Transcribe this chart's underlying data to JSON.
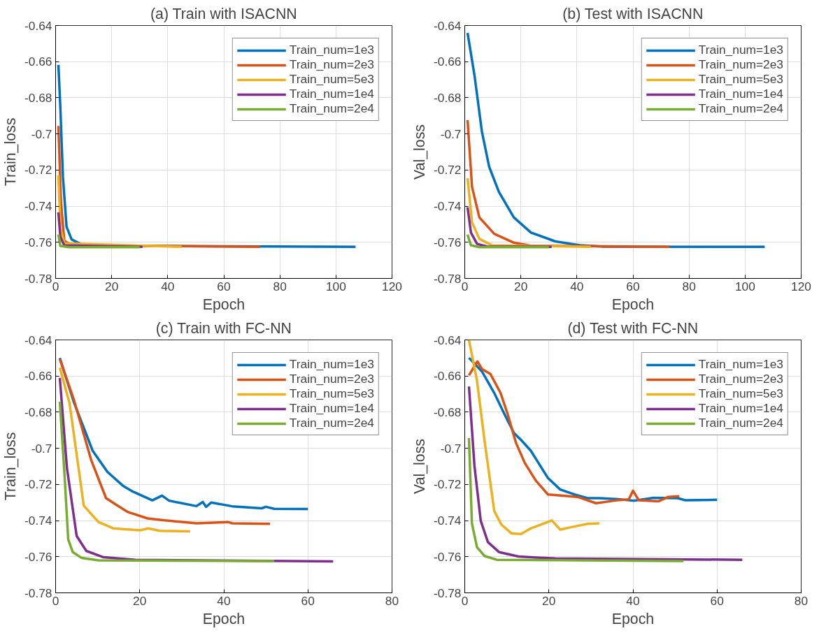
{
  "chart_data": [
    {
      "type": "line",
      "title": "(a) Train with ISACNN",
      "xlabel": "Epoch",
      "ylabel": "Train_loss",
      "xlim": [
        0,
        120
      ],
      "ylim": [
        -0.78,
        -0.64
      ],
      "xticks": [
        0,
        20,
        40,
        60,
        80,
        100,
        120
      ],
      "yticks": [
        -0.78,
        -0.76,
        -0.74,
        -0.72,
        -0.7,
        -0.68,
        -0.66,
        -0.64
      ],
      "grid": true,
      "legend": "top right",
      "line_style": "solid",
      "series": [
        {
          "name": "Train_num=1e3",
          "color": "#0072bd",
          "x": [
            1,
            1.7,
            2.6,
            3.9,
            5.7,
            9.2,
            15.3,
            107
          ],
          "values": [
            -0.6618,
            -0.6856,
            -0.7234,
            -0.7514,
            -0.7584,
            -0.7612,
            -0.7619,
            -0.7625
          ]
        },
        {
          "name": "Train_num=2e3",
          "color": "#d95319",
          "x": [
            1,
            1.9,
            3.1,
            5.7,
            73
          ],
          "values": [
            -0.6956,
            -0.7375,
            -0.7592,
            -0.7616,
            -0.7625
          ]
        },
        {
          "name": "Train_num=5e3",
          "color": "#edb120",
          "x": [
            1,
            1.7,
            3.1,
            45
          ],
          "values": [
            -0.7228,
            -0.7515,
            -0.7606,
            -0.7625
          ]
        },
        {
          "name": "Train_num=1e4",
          "color": "#7e2f8e",
          "x": [
            1,
            1.7,
            3.1,
            31
          ],
          "values": [
            -0.7434,
            -0.7571,
            -0.7617,
            -0.7625
          ]
        },
        {
          "name": "Train_num=2e4",
          "color": "#77ac30",
          "x": [
            1,
            1.7,
            4.8,
            30
          ],
          "values": [
            -0.7557,
            -0.762,
            -0.7627,
            -0.7627
          ]
        }
      ]
    },
    {
      "type": "line",
      "title": "(b) Test with ISACNN",
      "xlabel": "Epoch",
      "ylabel": "Val_loss",
      "xlim": [
        0,
        120
      ],
      "ylim": [
        -0.78,
        -0.64
      ],
      "xticks": [
        0,
        20,
        40,
        60,
        80,
        100,
        120
      ],
      "yticks": [
        -0.78,
        -0.76,
        -0.74,
        -0.72,
        -0.7,
        -0.68,
        -0.66,
        -0.64
      ],
      "grid": true,
      "legend": "top right",
      "line_style": "solid",
      "series": [
        {
          "name": "Train_num=1e3",
          "color": "#0072bd",
          "x": [
            1,
            3.5,
            6.1,
            8.7,
            12.2,
            17.5,
            23.6,
            32.3,
            41,
            49.8,
            107
          ],
          "values": [
            -0.6441,
            -0.6679,
            -0.6986,
            -0.7182,
            -0.7322,
            -0.7462,
            -0.7546,
            -0.7595,
            -0.7616,
            -0.7624,
            -0.7625
          ]
        },
        {
          "name": "Train_num=2e3",
          "color": "#d95319",
          "x": [
            1,
            2.6,
            5.2,
            10.5,
            17.5,
            23.6,
            73
          ],
          "values": [
            -0.6924,
            -0.7294,
            -0.7462,
            -0.7553,
            -0.7602,
            -0.7619,
            -0.7625
          ]
        },
        {
          "name": "Train_num=5e3",
          "color": "#edb120",
          "x": [
            1,
            2.6,
            5.2,
            9.6,
            45
          ],
          "values": [
            -0.7245,
            -0.749,
            -0.7581,
            -0.7616,
            -0.7625
          ]
        },
        {
          "name": "Train_num=1e4",
          "color": "#7e2f8e",
          "x": [
            1,
            2.2,
            4.4,
            7.9,
            31
          ],
          "values": [
            -0.7406,
            -0.7546,
            -0.7609,
            -0.7623,
            -0.7625
          ]
        },
        {
          "name": "Train_num=2e4",
          "color": "#77ac30",
          "x": [
            1,
            2.2,
            5.2,
            30
          ],
          "values": [
            -0.7557,
            -0.7616,
            -0.7627,
            -0.7627
          ]
        }
      ]
    },
    {
      "type": "line",
      "title": "(c) Train with FC-NN",
      "xlabel": "Epoch",
      "ylabel": "Train_loss",
      "xlim": [
        0,
        80
      ],
      "ylim": [
        -0.78,
        -0.64
      ],
      "xticks": [
        0,
        20,
        40,
        60,
        80
      ],
      "yticks": [
        -0.78,
        -0.76,
        -0.74,
        -0.72,
        -0.7,
        -0.68,
        -0.66,
        -0.64
      ],
      "grid": true,
      "legend": "top right",
      "line_style": "solid",
      "series": [
        {
          "name": "Train_num=1e3",
          "color": "#0072bd",
          "x": [
            1,
            4.4,
            8.8,
            12.3,
            16,
            18.4,
            23,
            25.3,
            27,
            33.5,
            35,
            35.8,
            37,
            42,
            49,
            50,
            52,
            60
          ],
          "values": [
            -0.65,
            -0.6749,
            -0.7013,
            -0.713,
            -0.7207,
            -0.724,
            -0.7288,
            -0.7262,
            -0.729,
            -0.732,
            -0.7297,
            -0.7324,
            -0.73,
            -0.7321,
            -0.7332,
            -0.7324,
            -0.7335,
            -0.7336
          ]
        },
        {
          "name": "Train_num=2e3",
          "color": "#d95319",
          "x": [
            1,
            4.4,
            8.5,
            12,
            14.3,
            17.2,
            21.9,
            26,
            33.5,
            41,
            42,
            51
          ],
          "values": [
            -0.6506,
            -0.6735,
            -0.7068,
            -0.7276,
            -0.7311,
            -0.7353,
            -0.7388,
            -0.7399,
            -0.7415,
            -0.7408,
            -0.7415,
            -0.7418
          ]
        },
        {
          "name": "Train_num=5e3",
          "color": "#edb120",
          "x": [
            1,
            3.3,
            6.7,
            10.2,
            13.7,
            20.1,
            22,
            24.8,
            32
          ],
          "values": [
            -0.6554,
            -0.6749,
            -0.7318,
            -0.7408,
            -0.7443,
            -0.7454,
            -0.7443,
            -0.7457,
            -0.746
          ]
        },
        {
          "name": "Train_num=1e4",
          "color": "#7e2f8e",
          "x": [
            1,
            2.7,
            5,
            7.3,
            11.4,
            19,
            66
          ],
          "values": [
            -0.661,
            -0.711,
            -0.7485,
            -0.7568,
            -0.7603,
            -0.7617,
            -0.7626
          ]
        },
        {
          "name": "Train_num=2e4",
          "color": "#77ac30",
          "x": [
            1,
            2.1,
            3,
            4.1,
            6.2,
            10.2,
            52
          ],
          "values": [
            -0.6742,
            -0.7138,
            -0.7505,
            -0.7575,
            -0.7607,
            -0.762,
            -0.7624
          ]
        }
      ]
    },
    {
      "type": "line",
      "title": "(d) Test with FC-NN",
      "xlabel": "Epoch",
      "ylabel": "Val_loss",
      "xlim": [
        0,
        80
      ],
      "ylim": [
        -0.78,
        -0.64
      ],
      "xticks": [
        0,
        20,
        40,
        60,
        80
      ],
      "yticks": [
        -0.78,
        -0.76,
        -0.74,
        -0.72,
        -0.7,
        -0.68,
        -0.66,
        -0.64
      ],
      "grid": true,
      "legend": "top right",
      "line_style": "solid",
      "series": [
        {
          "name": "Train_num=1e3",
          "color": "#0072bd",
          "x": [
            1,
            4.1,
            7,
            9.3,
            11.7,
            13.4,
            15.7,
            19.8,
            22.7,
            26.2,
            29.2,
            32,
            36,
            40.2,
            44.9,
            50.7,
            52.5,
            60
          ],
          "values": [
            -0.6499,
            -0.6575,
            -0.6693,
            -0.6804,
            -0.6915,
            -0.6954,
            -0.7013,
            -0.7165,
            -0.7228,
            -0.7256,
            -0.7276,
            -0.7276,
            -0.7281,
            -0.729,
            -0.7274,
            -0.7276,
            -0.7288,
            -0.7285
          ]
        },
        {
          "name": "Train_num=2e3",
          "color": "#d95319",
          "x": [
            1,
            3,
            4.1,
            6.1,
            8.5,
            10.2,
            12.2,
            14.3,
            16.9,
            19.8,
            23.9,
            26.8,
            31.2,
            36.1,
            39,
            40,
            41.4,
            46.1,
            48.4,
            51
          ],
          "values": [
            -0.6596,
            -0.6519,
            -0.6561,
            -0.6589,
            -0.6693,
            -0.6811,
            -0.6971,
            -0.7082,
            -0.7179,
            -0.7256,
            -0.7263,
            -0.7269,
            -0.7304,
            -0.7288,
            -0.7283,
            -0.7235,
            -0.7288,
            -0.7293,
            -0.7269,
            -0.7265
          ]
        },
        {
          "name": "Train_num=5e3",
          "color": "#edb120",
          "x": [
            1,
            2.9,
            4.7,
            7,
            8.7,
            11.1,
            13.4,
            15.7,
            20.7,
            22.7,
            26.2,
            29.2,
            32
          ],
          "values": [
            -0.6401,
            -0.6624,
            -0.6957,
            -0.7346,
            -0.7422,
            -0.7471,
            -0.7474,
            -0.7443,
            -0.7399,
            -0.745,
            -0.7432,
            -0.7418,
            -0.7415
          ]
        },
        {
          "name": "Train_num=1e4",
          "color": "#7e2f8e",
          "x": [
            1,
            2.3,
            3.8,
            5.5,
            8.2,
            12.8,
            21.6,
            66
          ],
          "values": [
            -0.6658,
            -0.7096,
            -0.7401,
            -0.7519,
            -0.7575,
            -0.7599,
            -0.761,
            -0.7617
          ]
        },
        {
          "name": "Train_num=2e4",
          "color": "#77ac30",
          "x": [
            1,
            1.7,
            2.9,
            4.7,
            7.6,
            52
          ],
          "values": [
            -0.6943,
            -0.7415,
            -0.7547,
            -0.7596,
            -0.7617,
            -0.7624
          ]
        }
      ]
    }
  ]
}
